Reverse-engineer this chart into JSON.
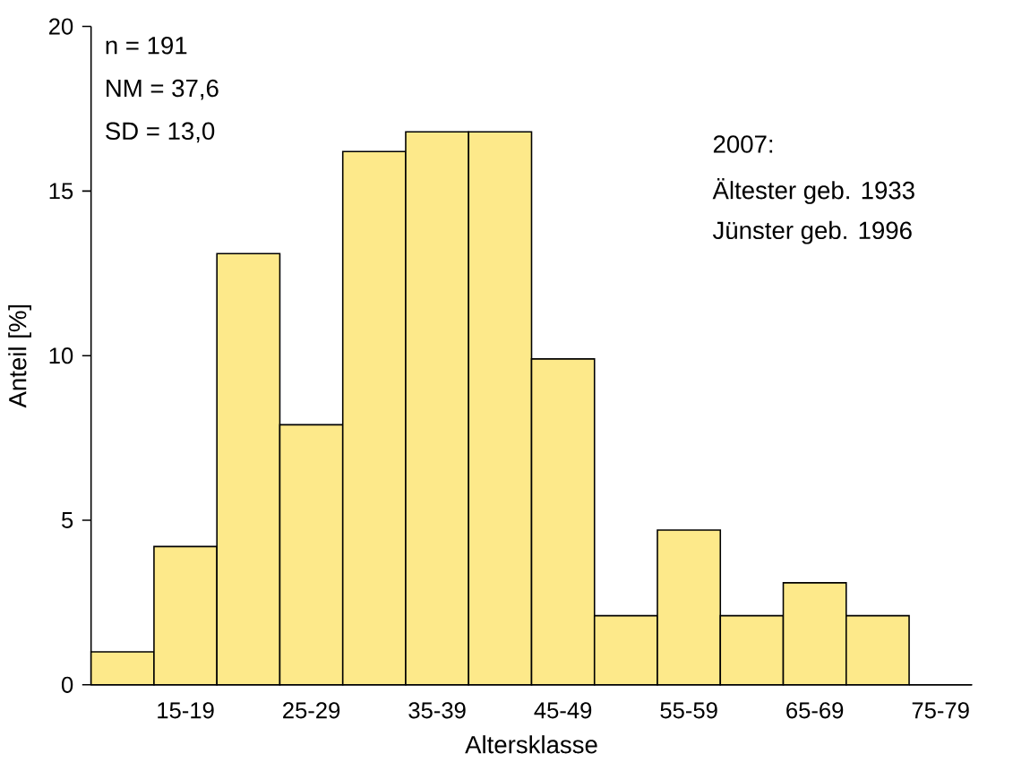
{
  "chart_data": {
    "type": "bar",
    "xlabel": "Altersklasse",
    "ylabel": "Anteil [%]",
    "categories": [
      null,
      "15-19",
      null,
      "25-29",
      null,
      "35-39",
      null,
      "45-49",
      null,
      "55-59",
      null,
      "65-69",
      null,
      "75-79"
    ],
    "values": [
      1.0,
      4.2,
      13.1,
      7.9,
      16.2,
      16.8,
      16.8,
      9.9,
      2.1,
      4.7,
      2.1,
      3.1,
      2.1,
      0
    ],
    "color": "#fde98a",
    "ylim": [
      0,
      20
    ],
    "yticks": [
      0,
      5,
      10,
      15,
      20
    ],
    "annotations": [
      "n = 191",
      "NM = 37,6",
      "SD = 13,0",
      "2007:",
      "Ältester geb. 1933",
      "Jünster geb. 1996"
    ]
  }
}
